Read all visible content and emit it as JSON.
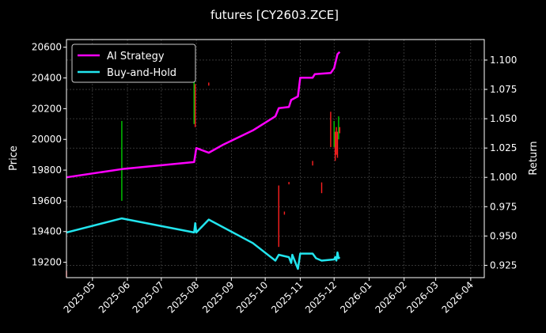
{
  "chart_data": {
    "type": "line",
    "title": "futures [CY2603.ZCE]",
    "ylabel": "Price",
    "ylabel_right": "Return",
    "grid": true,
    "legend_position": "top-left",
    "colors": {
      "background": "#000000",
      "ai": "#ff00ff",
      "bh": "#22e5ee",
      "up": "#00cc00",
      "down": "#ff2020",
      "grid": "#555555"
    },
    "x_ticks": [
      "2025-05",
      "2025-06",
      "2025-07",
      "2025-08",
      "2025-09",
      "2025-10",
      "2025-11",
      "2025-12",
      "2026-01",
      "2026-02",
      "2026-03",
      "2026-04"
    ],
    "xlim": [
      "2025-04-08",
      "2026-04-13"
    ],
    "ylim_left": [
      19100,
      20650
    ],
    "y_ticks_left": [
      19200,
      19400,
      19600,
      19800,
      20000,
      20200,
      20400,
      20600
    ],
    "ylim_right": [
      0.9145,
      1.1175
    ],
    "y_ticks_right": [
      0.925,
      0.95,
      0.975,
      1.0,
      1.025,
      1.05,
      1.075,
      1.1
    ],
    "series": [
      {
        "name": "AI Strategy",
        "axis": "right",
        "points": [
          [
            "2025-04-08",
            1.0
          ],
          [
            "2025-05-27",
            1.007
          ],
          [
            "2025-07-30",
            1.013
          ],
          [
            "2025-08-01",
            1.025
          ],
          [
            "2025-08-12",
            1.021
          ],
          [
            "2025-08-25",
            1.028
          ],
          [
            "2025-09-20",
            1.04
          ],
          [
            "2025-10-10",
            1.052
          ],
          [
            "2025-10-13",
            1.059
          ],
          [
            "2025-10-22",
            1.06
          ],
          [
            "2025-10-24",
            1.066
          ],
          [
            "2025-10-30",
            1.069
          ],
          [
            "2025-11-01",
            1.085
          ],
          [
            "2025-11-12",
            1.085
          ],
          [
            "2025-11-14",
            1.088
          ],
          [
            "2025-11-28",
            1.089
          ],
          [
            "2025-12-01",
            1.093
          ],
          [
            "2025-12-04",
            1.105
          ],
          [
            "2025-12-06",
            1.107
          ]
        ]
      },
      {
        "name": "Buy-and-Hold",
        "axis": "right",
        "points": [
          [
            "2025-04-08",
            0.953
          ],
          [
            "2025-05-27",
            0.965
          ],
          [
            "2025-07-30",
            0.953
          ],
          [
            "2025-07-31",
            0.961
          ],
          [
            "2025-08-01",
            0.953
          ],
          [
            "2025-08-12",
            0.964
          ],
          [
            "2025-09-20",
            0.944
          ],
          [
            "2025-10-10",
            0.929
          ],
          [
            "2025-10-13",
            0.934
          ],
          [
            "2025-10-22",
            0.932
          ],
          [
            "2025-10-24",
            0.927
          ],
          [
            "2025-10-25",
            0.934
          ],
          [
            "2025-10-30",
            0.922
          ],
          [
            "2025-11-01",
            0.935
          ],
          [
            "2025-11-12",
            0.935
          ],
          [
            "2025-11-15",
            0.931
          ],
          [
            "2025-11-20",
            0.929
          ],
          [
            "2025-12-01",
            0.93
          ],
          [
            "2025-12-02",
            0.932
          ],
          [
            "2025-12-03",
            0.929
          ],
          [
            "2025-12-04",
            0.936
          ],
          [
            "2025-12-05",
            0.931
          ],
          [
            "2025-12-06",
            0.932
          ]
        ]
      }
    ],
    "price_bars": [
      {
        "date": "2025-04-08",
        "low": 19105,
        "high": 19145,
        "dir": "down"
      },
      {
        "date": "2025-05-27",
        "low": 19600,
        "high": 20120,
        "dir": "up"
      },
      {
        "date": "2025-07-30",
        "low": 20100,
        "high": 20560,
        "dir": "up"
      },
      {
        "date": "2025-07-31",
        "low": 20080,
        "high": 20360,
        "dir": "down"
      },
      {
        "date": "2025-08-12",
        "low": 20350,
        "high": 20370,
        "dir": "down"
      },
      {
        "date": "2025-10-13",
        "low": 19300,
        "high": 19700,
        "dir": "down"
      },
      {
        "date": "2025-10-18",
        "low": 19510,
        "high": 19530,
        "dir": "down"
      },
      {
        "date": "2025-10-22",
        "low": 19710,
        "high": 19720,
        "dir": "down"
      },
      {
        "date": "2025-11-12",
        "low": 19830,
        "high": 19860,
        "dir": "down"
      },
      {
        "date": "2025-11-20",
        "low": 19650,
        "high": 19720,
        "dir": "down"
      },
      {
        "date": "2025-11-28",
        "low": 19950,
        "high": 20180,
        "dir": "down"
      },
      {
        "date": "2025-12-01",
        "low": 19950,
        "high": 20120,
        "dir": "up"
      },
      {
        "date": "2025-12-02",
        "low": 19860,
        "high": 20050,
        "dir": "down"
      },
      {
        "date": "2025-12-03",
        "low": 19900,
        "high": 20080,
        "dir": "down"
      },
      {
        "date": "2025-12-04",
        "low": 19880,
        "high": 20050,
        "dir": "down"
      },
      {
        "date": "2025-12-05",
        "low": 20000,
        "high": 20150,
        "dir": "up"
      },
      {
        "date": "2025-12-06",
        "low": 20040,
        "high": 20080,
        "dir": "down"
      }
    ]
  }
}
